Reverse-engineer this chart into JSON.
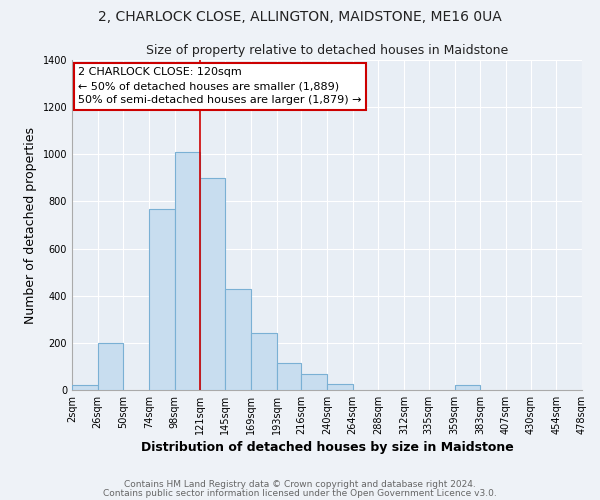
{
  "title_line1": "2, CHARLOCK CLOSE, ALLINGTON, MAIDSTONE, ME16 0UA",
  "title_line2": "Size of property relative to detached houses in Maidstone",
  "xlabel": "Distribution of detached houses by size in Maidstone",
  "ylabel": "Number of detached properties",
  "bar_color": "#c8ddef",
  "bar_edge_color": "#7ab0d4",
  "bin_edges": [
    2,
    26,
    50,
    74,
    98,
    121,
    145,
    169,
    193,
    216,
    240,
    264,
    288,
    312,
    335,
    359,
    383,
    407,
    430,
    454,
    478
  ],
  "bar_heights": [
    20,
    200,
    0,
    770,
    1010,
    900,
    430,
    240,
    115,
    70,
    25,
    0,
    0,
    0,
    0,
    20,
    0,
    0,
    0,
    0
  ],
  "tick_labels": [
    "2sqm",
    "26sqm",
    "50sqm",
    "74sqm",
    "98sqm",
    "121sqm",
    "145sqm",
    "169sqm",
    "193sqm",
    "216sqm",
    "240sqm",
    "264sqm",
    "288sqm",
    "312sqm",
    "335sqm",
    "359sqm",
    "383sqm",
    "407sqm",
    "430sqm",
    "454sqm",
    "478sqm"
  ],
  "vline_x": 121,
  "vline_color": "#cc0000",
  "annotation_title": "2 CHARLOCK CLOSE: 120sqm",
  "annotation_line2": "← 50% of detached houses are smaller (1,889)",
  "annotation_line3": "50% of semi-detached houses are larger (1,879) →",
  "annotation_box_facecolor": "#ffffff",
  "annotation_box_edgecolor": "#cc0000",
  "ylim": [
    0,
    1400
  ],
  "yticks": [
    0,
    200,
    400,
    600,
    800,
    1000,
    1200,
    1400
  ],
  "footer_line1": "Contains HM Land Registry data © Crown copyright and database right 2024.",
  "footer_line2": "Contains public sector information licensed under the Open Government Licence v3.0.",
  "background_color": "#eef2f7",
  "plot_bg_color": "#e8eef5",
  "grid_color": "#ffffff",
  "title_fontsize": 10,
  "subtitle_fontsize": 9,
  "axis_label_fontsize": 9,
  "tick_fontsize": 7,
  "annotation_fontsize": 8,
  "footer_fontsize": 6.5
}
